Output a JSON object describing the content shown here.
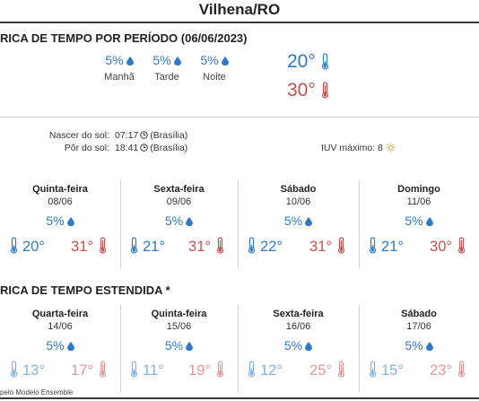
{
  "page": {
    "title": "Vilhena/RO"
  },
  "colors": {
    "cold": "#2f79c8",
    "hot": "#c0504d",
    "cold_light": "#7fb2e2",
    "hot_light": "#e29795"
  },
  "period_forecast": {
    "heading": "RICA DE TEMPO POR PERÍODO (06/06/2023)",
    "periods": [
      {
        "rain": "5%",
        "label": "Manhã"
      },
      {
        "rain": "5%",
        "label": "Tarde"
      },
      {
        "rain": "5%",
        "label": "Noite"
      }
    ],
    "min_temp": "20°",
    "max_temp": "30°"
  },
  "sun": {
    "sunrise_label": "Nascer do sol:",
    "sunrise_time": "07:17",
    "sunrise_zone": "(Brasília)",
    "sunset_label": "Pôr do sol:",
    "sunset_time": "18:41",
    "sunset_zone": "(Brasília)",
    "uv_label": "IUV máximo:",
    "uv_value": "8"
  },
  "daily": [
    {
      "day": "Quinta-feira",
      "date": "08/06",
      "rain": "5%",
      "min": "20°",
      "max": "31°"
    },
    {
      "day": "Sexta-feira",
      "date": "09/06",
      "rain": "5%",
      "min": "21°",
      "max": "31°"
    },
    {
      "day": "Sábado",
      "date": "10/06",
      "rain": "5%",
      "min": "22°",
      "max": "31°"
    },
    {
      "day": "Domingo",
      "date": "11/06",
      "rain": "5%",
      "min": "21°",
      "max": "30°"
    }
  ],
  "extended": {
    "heading": "RICA DE TEMPO ESTENDIDA *",
    "days": [
      {
        "day": "Quarta-feira",
        "date": "14/06",
        "rain": "5%",
        "min": "13°",
        "max": "17°"
      },
      {
        "day": "Quinta-feira",
        "date": "15/06",
        "rain": "5%",
        "min": "11°",
        "max": "19°"
      },
      {
        "day": "Sexta-feira",
        "date": "16/06",
        "rain": "5%",
        "min": "12°",
        "max": "25°"
      },
      {
        "day": "Sábado",
        "date": "17/06",
        "rain": "5%",
        "min": "15°",
        "max": "23°"
      }
    ],
    "footnote": "pelo Modelo Ensemble"
  },
  "icons": {
    "rain": "drop-icon",
    "min": "thermometer-cold-icon",
    "max": "thermometer-hot-icon",
    "clock": "clock-icon",
    "uv": "sun-icon"
  }
}
